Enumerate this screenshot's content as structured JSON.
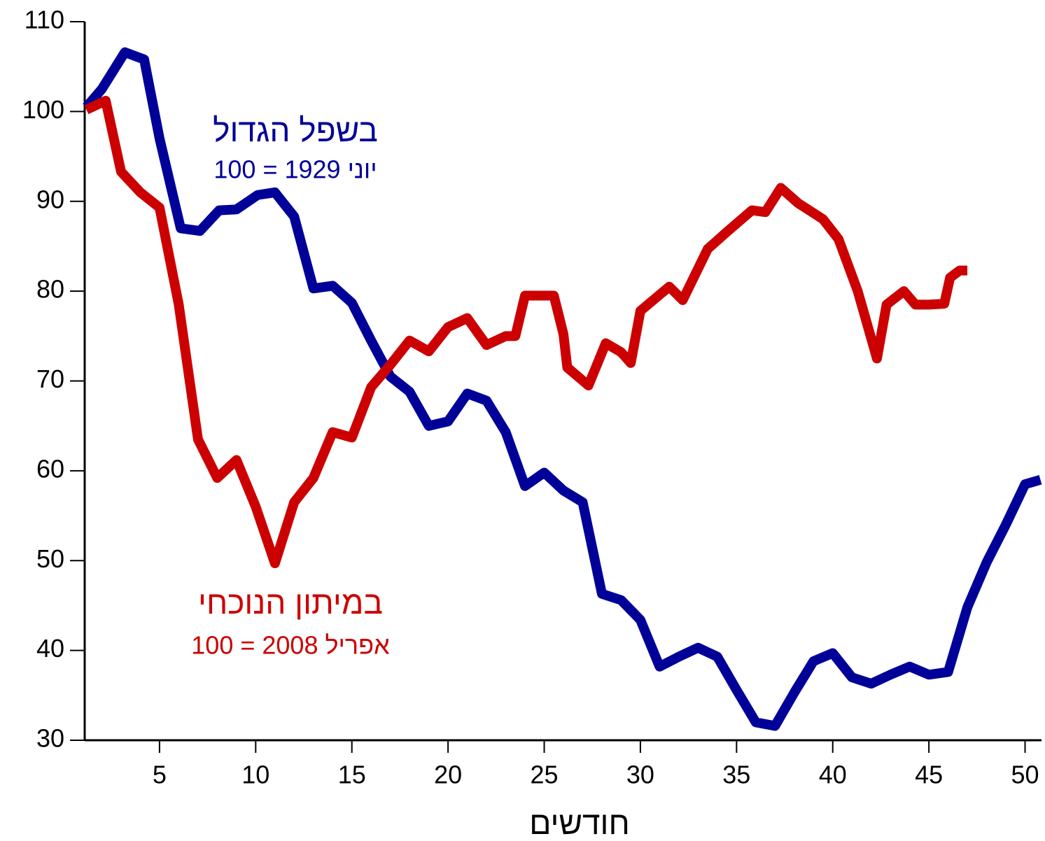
{
  "chart_data": {
    "type": "line",
    "x_label": "חודשים",
    "xlim": [
      1,
      51
    ],
    "ylim": [
      30,
      110
    ],
    "xticks": [
      5,
      10,
      15,
      20,
      25,
      30,
      35,
      40,
      45,
      50
    ],
    "yticks": [
      30,
      40,
      50,
      60,
      70,
      80,
      90,
      100,
      110
    ],
    "series": [
      {
        "name": "בשפל הגדול",
        "note": "יוני 1929 = 100",
        "color": "#000099",
        "x": [
          1.2,
          2,
          3.2,
          4.2,
          5,
          6.1,
          7.1,
          8.1,
          9,
          10.1,
          11,
          12,
          13,
          14,
          15,
          16,
          17,
          18,
          19,
          20,
          21,
          22,
          23,
          24,
          25,
          26,
          27,
          28,
          29,
          30,
          31,
          32,
          33,
          34,
          35,
          36,
          37,
          38,
          39,
          40,
          41,
          42,
          43,
          44,
          45,
          46,
          47,
          48,
          49,
          50,
          50.8
        ],
        "values": [
          100.5,
          102.5,
          106.6,
          105.8,
          97,
          87,
          86.7,
          89,
          89.1,
          90.7,
          91,
          88.3,
          80.3,
          80.6,
          78.7,
          74.5,
          70.5,
          68.8,
          65,
          65.5,
          68.6,
          67.8,
          64.3,
          58.3,
          59.8,
          57.8,
          56.5,
          46.3,
          45.6,
          43.4,
          38.2,
          39.3,
          40.3,
          39.3,
          35.6,
          32,
          31.6,
          35.3,
          38.8,
          39.7,
          37,
          36.3,
          37.3,
          38.2,
          37.3,
          37.6,
          44.8,
          49.8,
          54,
          58.5,
          59
        ]
      },
      {
        "name": "במיתון הנוכחי",
        "note": "אפריל 2008 = 100",
        "color": "#cc0000",
        "x": [
          1.2,
          2.2,
          3,
          4,
          5,
          6,
          7,
          8,
          9,
          10,
          11,
          12,
          13,
          14,
          15,
          16,
          17,
          18,
          19,
          20,
          21,
          22,
          23,
          23.5,
          24,
          25,
          25.5,
          26,
          26.2,
          27.3,
          28.2,
          29,
          29.5,
          30,
          31.5,
          32.2,
          33.5,
          34.5,
          35.8,
          36.5,
          37.3,
          38.2,
          39.5,
          40.3,
          41.3,
          42.3,
          42.8,
          43.7,
          44.3,
          45,
          45.8,
          46.1,
          46.6,
          47
        ],
        "values": [
          100.2,
          101.2,
          93.3,
          91,
          89.3,
          78.5,
          63.5,
          59.2,
          61.2,
          56,
          49.7,
          56.5,
          59.2,
          64.3,
          63.7,
          69.3,
          71.8,
          74.5,
          73.3,
          76,
          77,
          74,
          75,
          75,
          79.5,
          79.5,
          79.5,
          75.2,
          71.5,
          69.5,
          74.2,
          73.2,
          72,
          77.8,
          80.5,
          79,
          84.7,
          86.6,
          89,
          88.8,
          91.5,
          89.8,
          88,
          85.8,
          80,
          72.5,
          78.5,
          80,
          78.5,
          78.5,
          78.6,
          81.5,
          82.3,
          82.3
        ]
      }
    ]
  }
}
